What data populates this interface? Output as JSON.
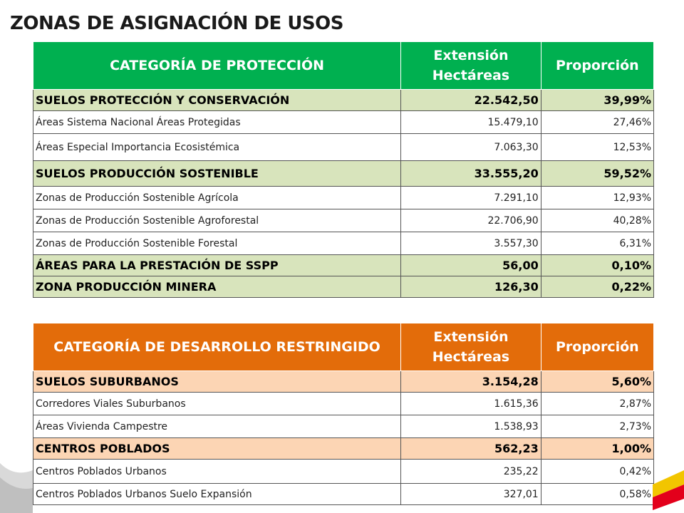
{
  "title": "ZONAS DE ASIGNACIÓN DE USOS",
  "table1": {
    "headers": [
      "CATEGORÍA DE PROTECCIÓN",
      "Extensión Hectáreas",
      "Proporción"
    ],
    "rows": [
      {
        "type": "cat",
        "name": "SUELOS PROTECCIÓN Y CONSERVACIÓN",
        "ext": "22.542,50",
        "prop": "39,99%"
      },
      {
        "type": "sub",
        "name": "Áreas Sistema Nacional Áreas Protegidas",
        "ext": "15.479,10",
        "prop": "27,46%"
      },
      {
        "type": "sub",
        "name": "Áreas Especial Importancia Ecosistémica",
        "ext": "7.063,30",
        "prop": "12,53%"
      },
      {
        "type": "cat",
        "name": "SUELOS PRODUCCIÓN SOSTENIBLE",
        "ext": "33.555,20",
        "prop": "59,52%"
      },
      {
        "type": "sub",
        "name": "Zonas de Producción Sostenible Agrícola",
        "ext": "7.291,10",
        "prop": "12,93%"
      },
      {
        "type": "sub",
        "name": "Zonas de Producción Sostenible Agroforestal",
        "ext": "22.706,90",
        "prop": "40,28%"
      },
      {
        "type": "sub",
        "name": "Zonas de Producción Sostenible Forestal",
        "ext": "3.557,30",
        "prop": "6,31%"
      },
      {
        "type": "cat",
        "name": "ÁREAS PARA LA PRESTACIÓN DE SSPP",
        "ext": "56,00",
        "prop": "0,10%"
      },
      {
        "type": "cat",
        "name": "ZONA PRODUCCIÓN MINERA",
        "ext": "126,30",
        "prop": "0,22%"
      }
    ]
  },
  "table2": {
    "headers": [
      "CATEGORÍA DE DESARROLLO RESTRINGIDO",
      "Extensión Hectáreas",
      "Proporción"
    ],
    "rows": [
      {
        "type": "cat",
        "name": "SUELOS SUBURBANOS",
        "ext": "3.154,28",
        "prop": "5,60%"
      },
      {
        "type": "sub",
        "name": "Corredores Viales Suburbanos",
        "ext": "1.615,36",
        "prop": "2,87%"
      },
      {
        "type": "sub",
        "name": "Áreas Vivienda Campestre",
        "ext": "1.538,93",
        "prop": "2,73%"
      },
      {
        "type": "cat",
        "name": "CENTROS POBLADOS",
        "ext": "562,23",
        "prop": "1,00%"
      },
      {
        "type": "sub",
        "name": "Centros Poblados Urbanos",
        "ext": "235,22",
        "prop": "0,42%"
      },
      {
        "type": "sub",
        "name": "Centros Poblados Urbanos Suelo Expansión",
        "ext": "327,01",
        "prop": "0,58%"
      }
    ]
  },
  "colors": {
    "green_header": "#00b050",
    "green_cat": "#d8e4bc",
    "orange_header": "#e36c0a",
    "orange_cat": "#fcd5b4"
  }
}
